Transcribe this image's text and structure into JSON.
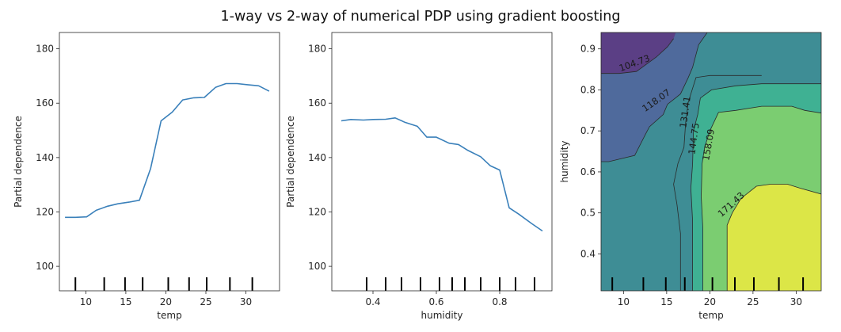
{
  "chart_data": {
    "title": "1-way vs 2-way of numerical PDP using gradient boosting",
    "panels": [
      {
        "type": "line",
        "xlabel": "temp",
        "ylabel": "Partial dependence",
        "xlim": [
          6.7,
          34.2
        ],
        "ylim": [
          91,
          186
        ],
        "xticks": [
          10,
          15,
          20,
          25,
          30
        ],
        "yticks": [
          100,
          120,
          140,
          160,
          180
        ],
        "line_color": "#3a80ba",
        "series": [
          {
            "x": [
              7.4,
              8.7,
              10.1,
              11.3,
              12.7,
              14.0,
              15.4,
              16.7,
              18.1,
              19.4,
              20.8,
              22.1,
              23.5,
              24.8,
              26.2,
              27.5,
              28.9,
              30.2,
              31.6,
              32.9
            ],
            "values": [
              118.0,
              118.0,
              118.2,
              120.6,
              122.1,
              123.0,
              123.6,
              124.3,
              136.0,
              153.5,
              156.7,
              161.2,
              162.0,
              162.1,
              165.8,
              167.2,
              167.2,
              166.8,
              166.4,
              164.4
            ]
          }
        ],
        "rug_x": [
          8.7,
          12.3,
          14.9,
          17.1,
          20.3,
          22.9,
          25.1,
          28.0,
          30.8
        ]
      },
      {
        "type": "line",
        "xlabel": "humidity",
        "ylabel": "Partial dependence",
        "xlim": [
          0.27,
          0.965
        ],
        "ylim": [
          91,
          186
        ],
        "xticks": [
          0.4,
          0.6,
          0.8
        ],
        "xtick_labels": [
          "0.4",
          "0.6",
          "0.8"
        ],
        "yticks": [
          100,
          120,
          140,
          160,
          180
        ],
        "yticks_labels": [
          "100",
          "120",
          "140",
          "160",
          "180"
        ],
        "line_color": "#3a80ba",
        "series": [
          {
            "x": [
              0.3,
              0.33,
              0.37,
              0.4,
              0.44,
              0.47,
              0.5,
              0.54,
              0.57,
              0.6,
              0.64,
              0.67,
              0.7,
              0.74,
              0.77,
              0.8,
              0.83,
              0.86,
              0.9,
              0.935
            ],
            "values": [
              153.5,
              154.0,
              153.8,
              154.0,
              154.1,
              154.6,
              153.0,
              151.5,
              147.5,
              147.5,
              145.3,
              144.8,
              142.6,
              140.3,
              137.0,
              135.4,
              121.5,
              119.2,
              115.8,
              113.0
            ]
          }
        ],
        "rug_x": [
          0.38,
          0.44,
          0.49,
          0.55,
          0.61,
          0.65,
          0.69,
          0.74,
          0.8,
          0.85,
          0.91
        ]
      },
      {
        "type": "contour",
        "xlabel": "temp",
        "ylabel": "humidity",
        "xlim": [
          7.4,
          32.9
        ],
        "ylim": [
          0.31,
          0.94
        ],
        "xticks": [
          10,
          15,
          20,
          25,
          30
        ],
        "yticks": [
          0.4,
          0.5,
          0.6,
          0.7,
          0.8,
          0.9
        ],
        "yticks_labels": [
          "0.4",
          "0.5",
          "0.6",
          "0.7",
          "0.8",
          "0.9"
        ],
        "levels": [
          104.73,
          118.07,
          131.41,
          144.75,
          158.09,
          171.43
        ],
        "level_labels": [
          "104.73",
          "118.07",
          "131.41",
          "144.75",
          "158.09",
          "171.43"
        ],
        "fill_colors": [
          "#5b3f85",
          "#4f6a9c",
          "#3e8d95",
          "#3fb193",
          "#7bcd71",
          "#c2dd52",
          "#dce647"
        ],
        "rug_x": [
          8.7,
          12.3,
          14.9,
          17.1,
          20.3,
          22.9,
          25.1,
          28.0,
          30.8
        ]
      }
    ]
  }
}
